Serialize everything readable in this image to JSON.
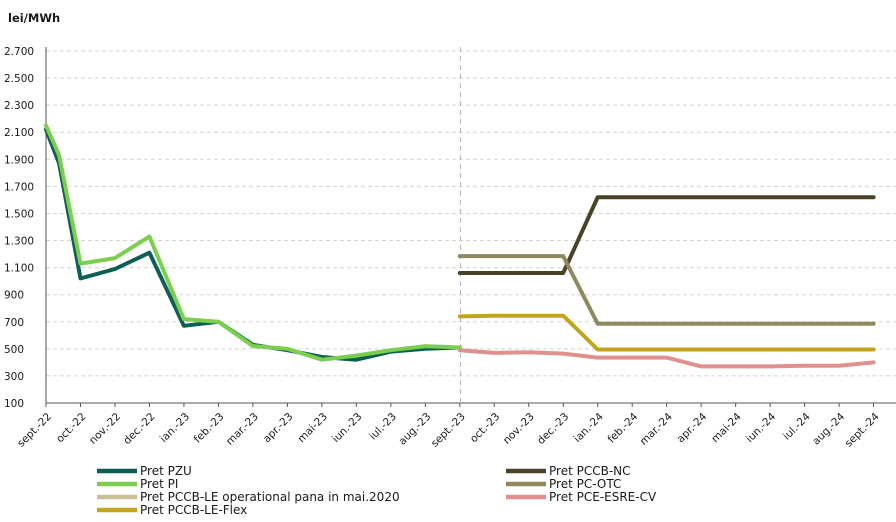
{
  "chart_data": {
    "type": "line",
    "ylabel": "lei/MWh",
    "ylim": [
      100,
      2700
    ],
    "yticks": [
      "100",
      "300",
      "500",
      "700",
      "900",
      "1.100",
      "1.300",
      "1.500",
      "1.700",
      "1.900",
      "2.100",
      "2.300",
      "2.500",
      "2.700"
    ],
    "ytick_values": [
      100,
      300,
      500,
      700,
      900,
      1100,
      1300,
      1500,
      1700,
      1900,
      2100,
      2300,
      2500,
      2700
    ],
    "grid": true,
    "legend_position": "bottom",
    "categories": [
      "sept.-22",
      "oct.-22",
      "nov.-22",
      "dec.-22",
      "ian.-23",
      "feb.-23",
      "mar.-23",
      "apr.-23",
      "mai-23",
      "iun.-23",
      "iul.-23",
      "aug.-23",
      "sept.-23",
      "oct.-23",
      "nov.-23",
      "dec.-23",
      "ian.-24",
      "feb.-24",
      "mar.-24",
      "apr.-24",
      "mai-24",
      "iun.-24",
      "iul.-24",
      "aug.-24",
      "sept.-24"
    ],
    "divider_after_category": "sept.-23",
    "series": [
      {
        "name": "Pret PZU",
        "color": "#0d5f56",
        "points": [
          [
            "sept.-22",
            2120
          ],
          [
            "sept.-22+",
            1870
          ],
          [
            "oct.-22",
            1020
          ],
          [
            "nov.-22",
            1090
          ],
          [
            "dec.-22",
            1210
          ],
          [
            "ian.-23",
            670
          ],
          [
            "feb.-23",
            700
          ],
          [
            "mar.-23",
            530
          ],
          [
            "apr.-23",
            490
          ],
          [
            "mai-23",
            440
          ],
          [
            "iun.-23",
            420
          ],
          [
            "iul.-23",
            480
          ],
          [
            "aug.-23",
            500
          ],
          [
            "sept.-23",
            510
          ]
        ]
      },
      {
        "name": "Pret PI",
        "color": "#7ccf4e",
        "points": [
          [
            "sept.-22",
            2150
          ],
          [
            "sept.-22+",
            1930
          ],
          [
            "oct.-22",
            1130
          ],
          [
            "nov.-22",
            1170
          ],
          [
            "dec.-22",
            1330
          ],
          [
            "ian.-23",
            720
          ],
          [
            "feb.-23",
            700
          ],
          [
            "mar.-23",
            520
          ],
          [
            "apr.-23",
            500
          ],
          [
            "mai-23",
            420
          ],
          [
            "iun.-23",
            450
          ],
          [
            "iul.-23",
            490
          ],
          [
            "aug.-23",
            520
          ],
          [
            "sept.-23",
            510
          ]
        ]
      },
      {
        "name": "Pret PCCB-LE operational pana in mai.2020",
        "color": "#c9bf98",
        "points": []
      },
      {
        "name": "Pret PCCB-LE-Flex",
        "color": "#c2a51c",
        "points": [
          [
            "sept.-23",
            740
          ],
          [
            "oct.-23",
            745
          ],
          [
            "nov.-23",
            745
          ],
          [
            "dec.-23",
            745
          ],
          [
            "ian.-24",
            495
          ],
          [
            "feb.-24",
            495
          ],
          [
            "mar.-24",
            495
          ],
          [
            "apr.-24",
            495
          ],
          [
            "mai-24",
            495
          ],
          [
            "iun.-24",
            495
          ],
          [
            "iul.-24",
            495
          ],
          [
            "aug.-24",
            495
          ],
          [
            "sept.-24",
            495
          ]
        ]
      },
      {
        "name": "Pret PCCB-NC",
        "color": "#4a4228",
        "points": [
          [
            "sept.-23",
            1060
          ],
          [
            "oct.-23",
            1060
          ],
          [
            "nov.-23",
            1060
          ],
          [
            "dec.-23",
            1060
          ],
          [
            "ian.-24",
            1620
          ],
          [
            "feb.-24",
            1620
          ],
          [
            "mar.-24",
            1620
          ],
          [
            "apr.-24",
            1620
          ],
          [
            "mai-24",
            1620
          ],
          [
            "iun.-24",
            1620
          ],
          [
            "iul.-24",
            1620
          ],
          [
            "aug.-24",
            1620
          ],
          [
            "sept.-24",
            1620
          ]
        ]
      },
      {
        "name": "Pret PC-OTC",
        "color": "#8f8a5e",
        "points": [
          [
            "sept.-23",
            1185
          ],
          [
            "oct.-23",
            1185
          ],
          [
            "nov.-23",
            1185
          ],
          [
            "dec.-23",
            1185
          ],
          [
            "ian.-24",
            685
          ],
          [
            "feb.-24",
            685
          ],
          [
            "mar.-24",
            685
          ],
          [
            "apr.-24",
            685
          ],
          [
            "mai-24",
            685
          ],
          [
            "iun.-24",
            685
          ],
          [
            "iul.-24",
            685
          ],
          [
            "aug.-24",
            685
          ],
          [
            "sept.-24",
            685
          ]
        ]
      },
      {
        "name": "Pret PCE-ESRE-CV",
        "color": "#e0908f",
        "points": [
          [
            "sept.-23",
            490
          ],
          [
            "oct.-23",
            470
          ],
          [
            "nov.-23",
            475
          ],
          [
            "dec.-23",
            465
          ],
          [
            "ian.-24",
            435
          ],
          [
            "feb.-24",
            435
          ],
          [
            "mar.-24",
            435
          ],
          [
            "apr.-24",
            370
          ],
          [
            "mai-24",
            370
          ],
          [
            "iun.-24",
            370
          ],
          [
            "iul.-24",
            375
          ],
          [
            "aug.-24",
            375
          ],
          [
            "sept.-24",
            400
          ]
        ]
      }
    ],
    "legend_left": [
      "Pret PZU",
      "Pret PI",
      "Pret PCCB-LE operational pana in mai.2020",
      "Pret PCCB-LE-Flex"
    ],
    "legend_right": [
      "Pret PCCB-NC",
      "Pret PC-OTC",
      "Pret PCE-ESRE-CV"
    ]
  }
}
